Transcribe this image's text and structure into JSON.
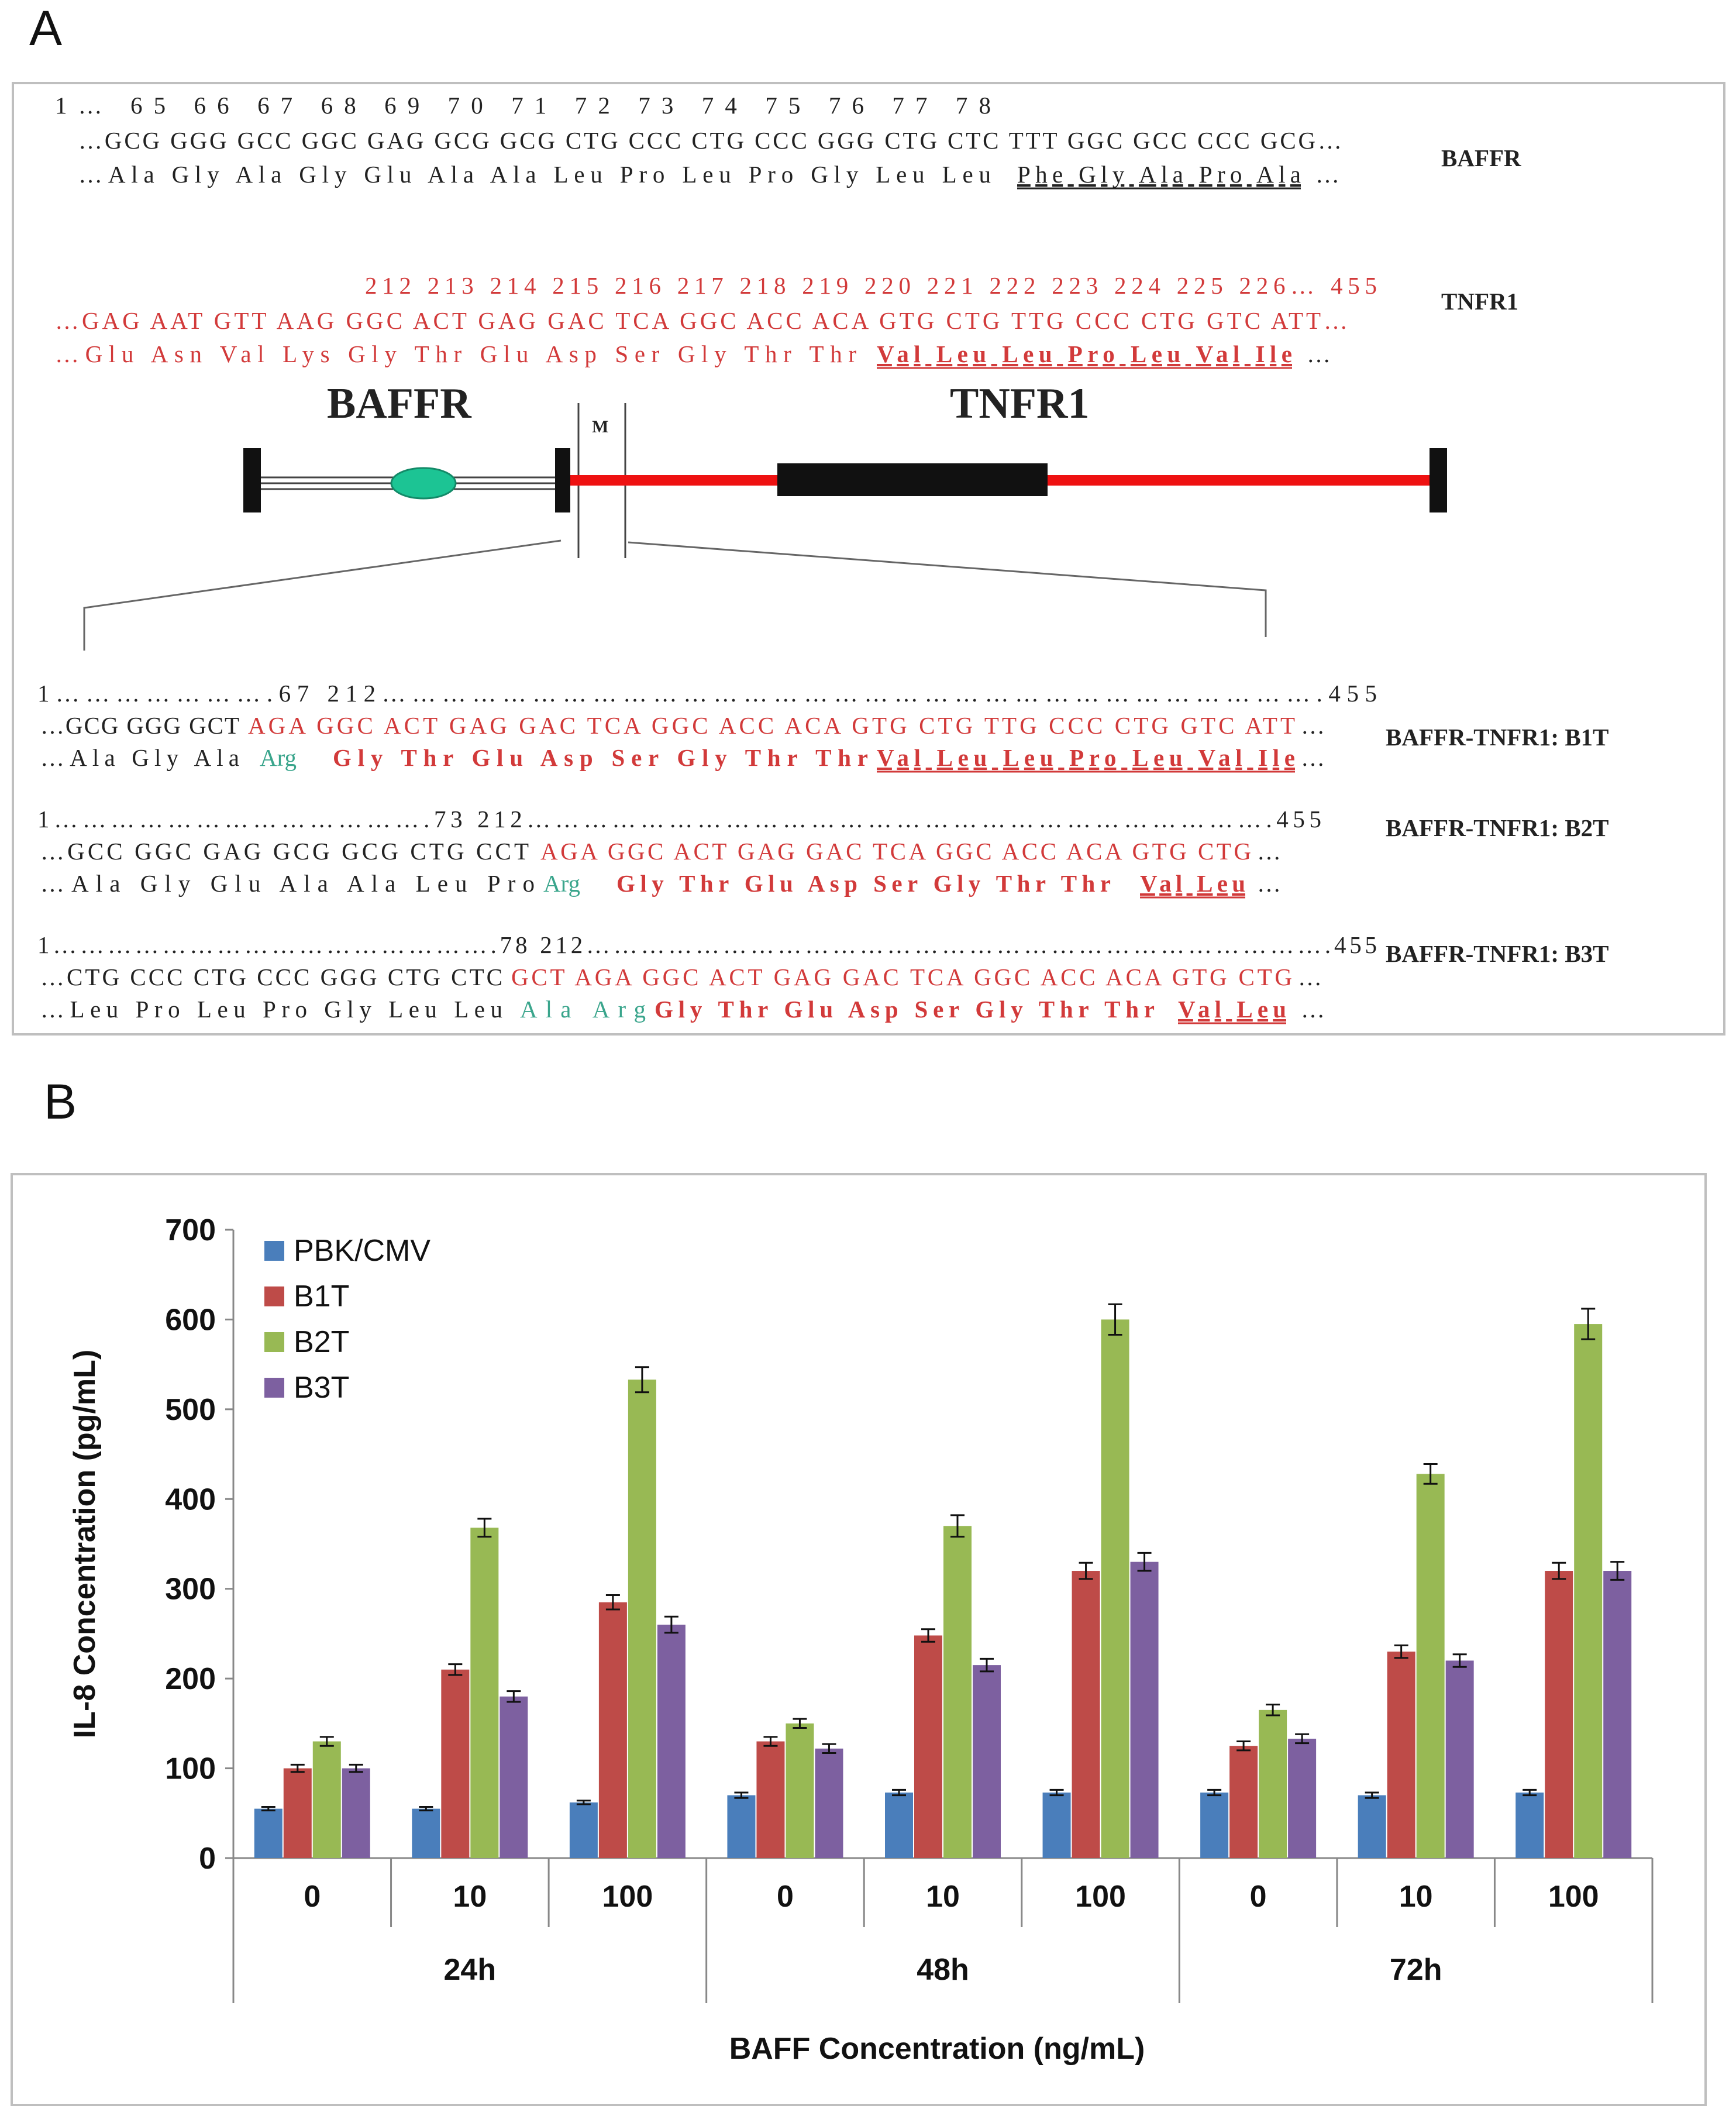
{
  "panel_a": {
    "label": "A",
    "baffr_row": {
      "numbers": "1… 65 66 67 68 69 70 71 72 73 74 75 76 77 78",
      "nt": "…GCG GGG GCC GGC GAG GCG GCG CTG CCC CTG CCC GGG CTG CTC TTT GGC GCC CCC GCG…",
      "aa": "…Ala Gly Ala Gly Glu Ala Ala Leu Pro Leu Pro Gly Leu Leu",
      "aa_underlined": "Phe Gly Ala Pro Ala",
      "aa_tail": "…",
      "tag": "BAFFR"
    },
    "tnfr1_row": {
      "numbers": "212 213 214 215 216 217 218 219 220 221 222 223 224 225 226… 455",
      "nt": "…GAG AAT GTT AAG GGC ACT GAG GAC TCA GGC ACC ACA GTG CTG TTG CCC CTG GTC ATT…",
      "aa": "…Glu Asn Val Lys Gly Thr Glu Asp Ser Gly Thr Thr",
      "aa_underlined": "Val Leu Leu Pro Leu Val Ile",
      "aa_tail": "…",
      "tag": "TNFR1"
    },
    "schematic": {
      "left_label": "BAFFR",
      "right_label": "TNFR1",
      "middle_label": "M"
    },
    "constructs": [
      {
        "numbers": "1………………….67 212………………………………………………………………………………….455",
        "nt_black": "…GCG GGG GCT",
        "nt_red": "AGA GGC ACT GAG GAC TCA GGC ACC ACA GTG CTG TTG CCC CTG GTC ATT",
        "nt_tail": "…",
        "aa_black": "…Ala Gly Ala",
        "aa_green": "Arg",
        "aa_red": "Gly Thr Glu Asp Ser Gly Thr Thr",
        "aa_underlined": "Val Leu Leu Pro Leu Val Ile",
        "aa_tail": "…",
        "tag": "BAFFR-TNFR1: B1T"
      },
      {
        "numbers": "1………………………………….73 212…………………………………………………………………….455",
        "nt_black": "…GCC GGC GAG GCG GCG CTG CCT",
        "nt_red": "AGA GGC ACT GAG GAC TCA GGC ACC ACA GTG CTG",
        "nt_tail": "…",
        "aa_black": "…Ala Gly Glu Ala Ala Leu Pro",
        "aa_green": "Arg",
        "aa_red": "Gly Thr Glu Asp Ser Gly Thr Thr",
        "aa_underlined": "Val Leu",
        "aa_tail": "…",
        "tag": "BAFFR-TNFR1: B2T"
      },
      {
        "numbers": "1………………………………………….78 212……………………………………………………………………….455",
        "nt_black": "…CTG CCC CTG CCC GGG CTG CTC",
        "nt_red": "GCT AGA GGC ACT GAG GAC TCA GGC ACC ACA GTG CTG",
        "nt_tail": "…",
        "aa_black": "…Leu Pro Leu Pro Gly Leu Leu",
        "aa_green": "Ala Arg",
        "aa_red": "Gly Thr Glu Asp Ser Gly Thr Thr",
        "aa_underlined": "Val Leu",
        "aa_tail": "…",
        "tag": "BAFFR-TNFR1: B3T"
      }
    ]
  },
  "panel_b": {
    "label": "B"
  },
  "colors": {
    "red_seq": "#d23a3a",
    "green_seq": "#3aa58c",
    "black_seq": "#222222"
  },
  "chart_data": {
    "type": "bar",
    "title": "",
    "xlabel": "BAFF Concentration (ng/mL)",
    "ylabel": "IL-8 Concentration (pg/mL)",
    "ylim": [
      0,
      700
    ],
    "yticks": [
      0,
      100,
      200,
      300,
      400,
      500,
      600,
      700
    ],
    "grid": false,
    "legend_position": "top-left",
    "categories": [
      "0",
      "10",
      "100",
      "0",
      "10",
      "100",
      "0",
      "10",
      "100"
    ],
    "groups": [
      {
        "label": "24h",
        "span": 3
      },
      {
        "label": "48h",
        "span": 3
      },
      {
        "label": "72h",
        "span": 3
      }
    ],
    "series": [
      {
        "name": "PBK/CMV",
        "color": "#4a7ebb",
        "values": [
          55,
          55,
          62,
          70,
          73,
          73,
          73,
          70,
          73
        ],
        "errors": [
          2,
          2,
          2,
          3,
          3,
          3,
          3,
          3,
          3
        ]
      },
      {
        "name": "B1T",
        "color": "#be4b48",
        "values": [
          100,
          210,
          285,
          130,
          248,
          320,
          125,
          230,
          320
        ],
        "errors": [
          4,
          6,
          8,
          5,
          7,
          9,
          5,
          7,
          9
        ]
      },
      {
        "name": "B2T",
        "color": "#98b954",
        "values": [
          130,
          368,
          533,
          150,
          370,
          600,
          165,
          428,
          595
        ],
        "errors": [
          5,
          10,
          14,
          5,
          12,
          17,
          6,
          11,
          17
        ]
      },
      {
        "name": "B3T",
        "color": "#7d60a0",
        "values": [
          100,
          180,
          260,
          122,
          215,
          330,
          133,
          220,
          320
        ],
        "errors": [
          4,
          6,
          9,
          5,
          7,
          10,
          5,
          7,
          10
        ]
      }
    ]
  }
}
